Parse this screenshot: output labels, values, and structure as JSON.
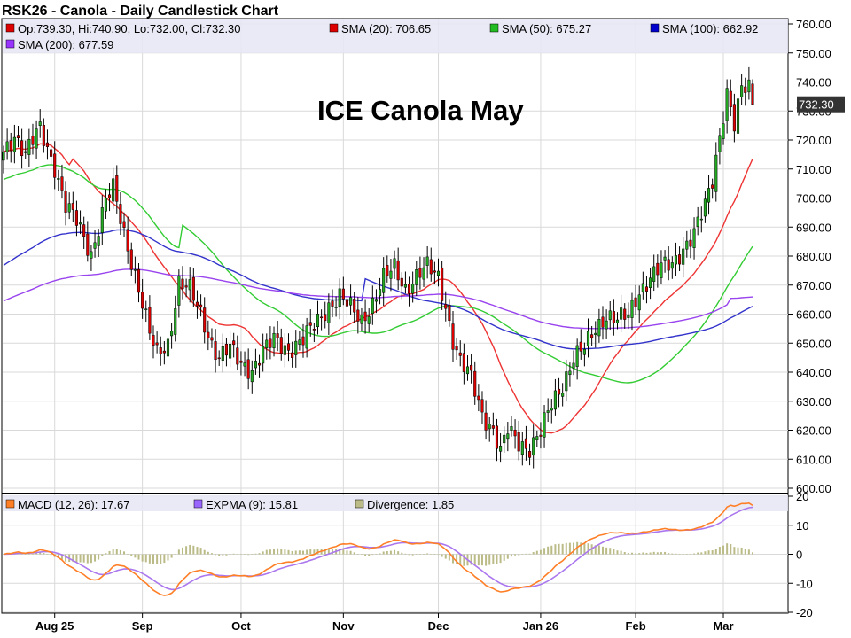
{
  "chart_data": [
    {
      "type": "candlestick",
      "title": "RSK26 - Canola - Daily Candlestick Chart",
      "annotation": "ICE Canola May",
      "last_price_label": "732.30",
      "ylim": [
        600,
        760
      ],
      "y_ticks": [
        "600.00",
        "610.00",
        "620.00",
        "630.00",
        "640.00",
        "650.00",
        "660.00",
        "670.00",
        "680.00",
        "690.00",
        "700.00",
        "710.00",
        "720.00",
        "730.00",
        "740.00",
        "750.00",
        "760.00"
      ],
      "x_ticks": [
        {
          "label": "Aug 25",
          "i": 14
        },
        {
          "label": "Sep",
          "i": 38
        },
        {
          "label": "Oct",
          "i": 65
        },
        {
          "label": "Nov",
          "i": 93
        },
        {
          "label": "Dec",
          "i": 119
        },
        {
          "label": "Jan 26",
          "i": 147
        },
        {
          "label": "Feb",
          "i": 173
        },
        {
          "label": "Mar",
          "i": 197
        }
      ],
      "legend": [
        {
          "label": "Op:739.30, Hi:740.90, Lo:732.00, Cl:732.30",
          "color": "#dd0000"
        },
        {
          "label": "SMA (20): 706.65",
          "color": "#dd0000"
        },
        {
          "label": "SMA (50): 675.27",
          "color": "#22bb22"
        },
        {
          "label": "SMA (100): 662.92",
          "color": "#0000cc"
        },
        {
          "label": "SMA (200): 677.59",
          "color": "#9933ff"
        }
      ],
      "up_color": "#22aa22",
      "down_color": "#dd0000",
      "anchors": [
        [
          0,
          716
        ],
        [
          3,
          722
        ],
        [
          6,
          715
        ],
        [
          10,
          724
        ],
        [
          14,
          711
        ],
        [
          17,
          697
        ],
        [
          20,
          692
        ],
        [
          24,
          681
        ],
        [
          28,
          699
        ],
        [
          30,
          703
        ],
        [
          33,
          688
        ],
        [
          36,
          674
        ],
        [
          40,
          653
        ],
        [
          42,
          646
        ],
        [
          45,
          650
        ],
        [
          48,
          671
        ],
        [
          51,
          668
        ],
        [
          54,
          660
        ],
        [
          57,
          650
        ],
        [
          59,
          645
        ],
        [
          62,
          648
        ],
        [
          65,
          643
        ],
        [
          68,
          641
        ],
        [
          71,
          647
        ],
        [
          74,
          651
        ],
        [
          78,
          648
        ],
        [
          82,
          651
        ],
        [
          85,
          656
        ],
        [
          89,
          663
        ],
        [
          92,
          666
        ],
        [
          95,
          662
        ],
        [
          98,
          658
        ],
        [
          101,
          664
        ],
        [
          104,
          672
        ],
        [
          107,
          676
        ],
        [
          110,
          669
        ],
        [
          113,
          673
        ],
        [
          116,
          676
        ],
        [
          119,
          673
        ],
        [
          121,
          663
        ],
        [
          123,
          651
        ],
        [
          125,
          643
        ],
        [
          128,
          638
        ],
        [
          131,
          626
        ],
        [
          134,
          620
        ],
        [
          136,
          612
        ],
        [
          138,
          620
        ],
        [
          141,
          616
        ],
        [
          144,
          614
        ],
        [
          147,
          619
        ],
        [
          150,
          629
        ],
        [
          153,
          636
        ],
        [
          156,
          645
        ],
        [
          159,
          648
        ],
        [
          162,
          655
        ],
        [
          165,
          660
        ],
        [
          168,
          658
        ],
        [
          171,
          659
        ],
        [
          174,
          668
        ],
        [
          177,
          673
        ],
        [
          180,
          676
        ],
        [
          183,
          677
        ],
        [
          186,
          683
        ],
        [
          189,
          688
        ],
        [
          192,
          697
        ],
        [
          194,
          706
        ],
        [
          196,
          722
        ],
        [
          198,
          737
        ],
        [
          200,
          725
        ],
        [
          202,
          737
        ],
        [
          204,
          738
        ],
        [
          205,
          732.3
        ]
      ],
      "last_bar": {
        "o": 739.3,
        "h": 740.9,
        "l": 732.0,
        "c": 732.3
      },
      "sma": [
        {
          "label": "SMA (20)",
          "period": 20,
          "color": "#ee3333"
        },
        {
          "label": "SMA (50)",
          "period": 50,
          "color": "#33cc33"
        },
        {
          "label": "SMA (100)",
          "period": 100,
          "color": "#3333cc"
        },
        {
          "label": "SMA (200)",
          "period": 200,
          "color": "#9944ee"
        }
      ]
    },
    {
      "type": "macd",
      "ylim": [
        -20,
        20
      ],
      "y_ticks": [
        "-20",
        "-10",
        "0",
        "10",
        "20"
      ],
      "legend": [
        {
          "label": "MACD (12, 26): 17.67",
          "color": "#ff7f27"
        },
        {
          "label": "EXPMA (9): 15.81",
          "color": "#9966ff"
        },
        {
          "label": "Divergence: 1.85",
          "color": "#bbbb88"
        }
      ],
      "macd_color": "#ff7f27",
      "signal_color": "#aa77ee",
      "divergence_color": "#bbbb88"
    }
  ]
}
